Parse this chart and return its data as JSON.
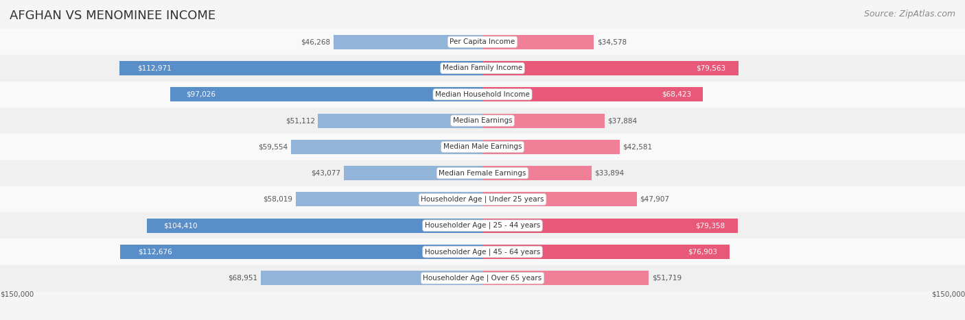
{
  "title": "AFGHAN VS MENOMINEE INCOME",
  "source": "Source: ZipAtlas.com",
  "categories": [
    "Per Capita Income",
    "Median Family Income",
    "Median Household Income",
    "Median Earnings",
    "Median Male Earnings",
    "Median Female Earnings",
    "Householder Age | Under 25 years",
    "Householder Age | 25 - 44 years",
    "Householder Age | 45 - 64 years",
    "Householder Age | Over 65 years"
  ],
  "afghan_values": [
    46268,
    112971,
    97026,
    51112,
    59554,
    43077,
    58019,
    104410,
    112676,
    68951
  ],
  "menominee_values": [
    34578,
    79563,
    68423,
    37884,
    42581,
    33894,
    47907,
    79358,
    76903,
    51719
  ],
  "afghan_labels": [
    "$46,268",
    "$112,971",
    "$97,026",
    "$51,112",
    "$59,554",
    "$43,077",
    "$58,019",
    "$104,410",
    "$112,676",
    "$68,951"
  ],
  "menominee_labels": [
    "$34,578",
    "$79,563",
    "$68,423",
    "$37,884",
    "$42,581",
    "$33,894",
    "$47,907",
    "$79,358",
    "$76,903",
    "$51,719"
  ],
  "afghan_color": "#92b4d9",
  "menominee_color": "#f08098",
  "afghan_color_strong": "#5a8ec8",
  "menominee_color_strong": "#e85878",
  "max_val": 150000,
  "bar_height": 0.55,
  "background_color": "#f5f5f5",
  "row_bg_light": "#f9f9f9",
  "row_bg_dark": "#f0f0f0",
  "label_box_color": "#ffffff",
  "title_fontsize": 13,
  "source_fontsize": 9,
  "label_fontsize": 7.5,
  "value_fontsize": 7.5
}
